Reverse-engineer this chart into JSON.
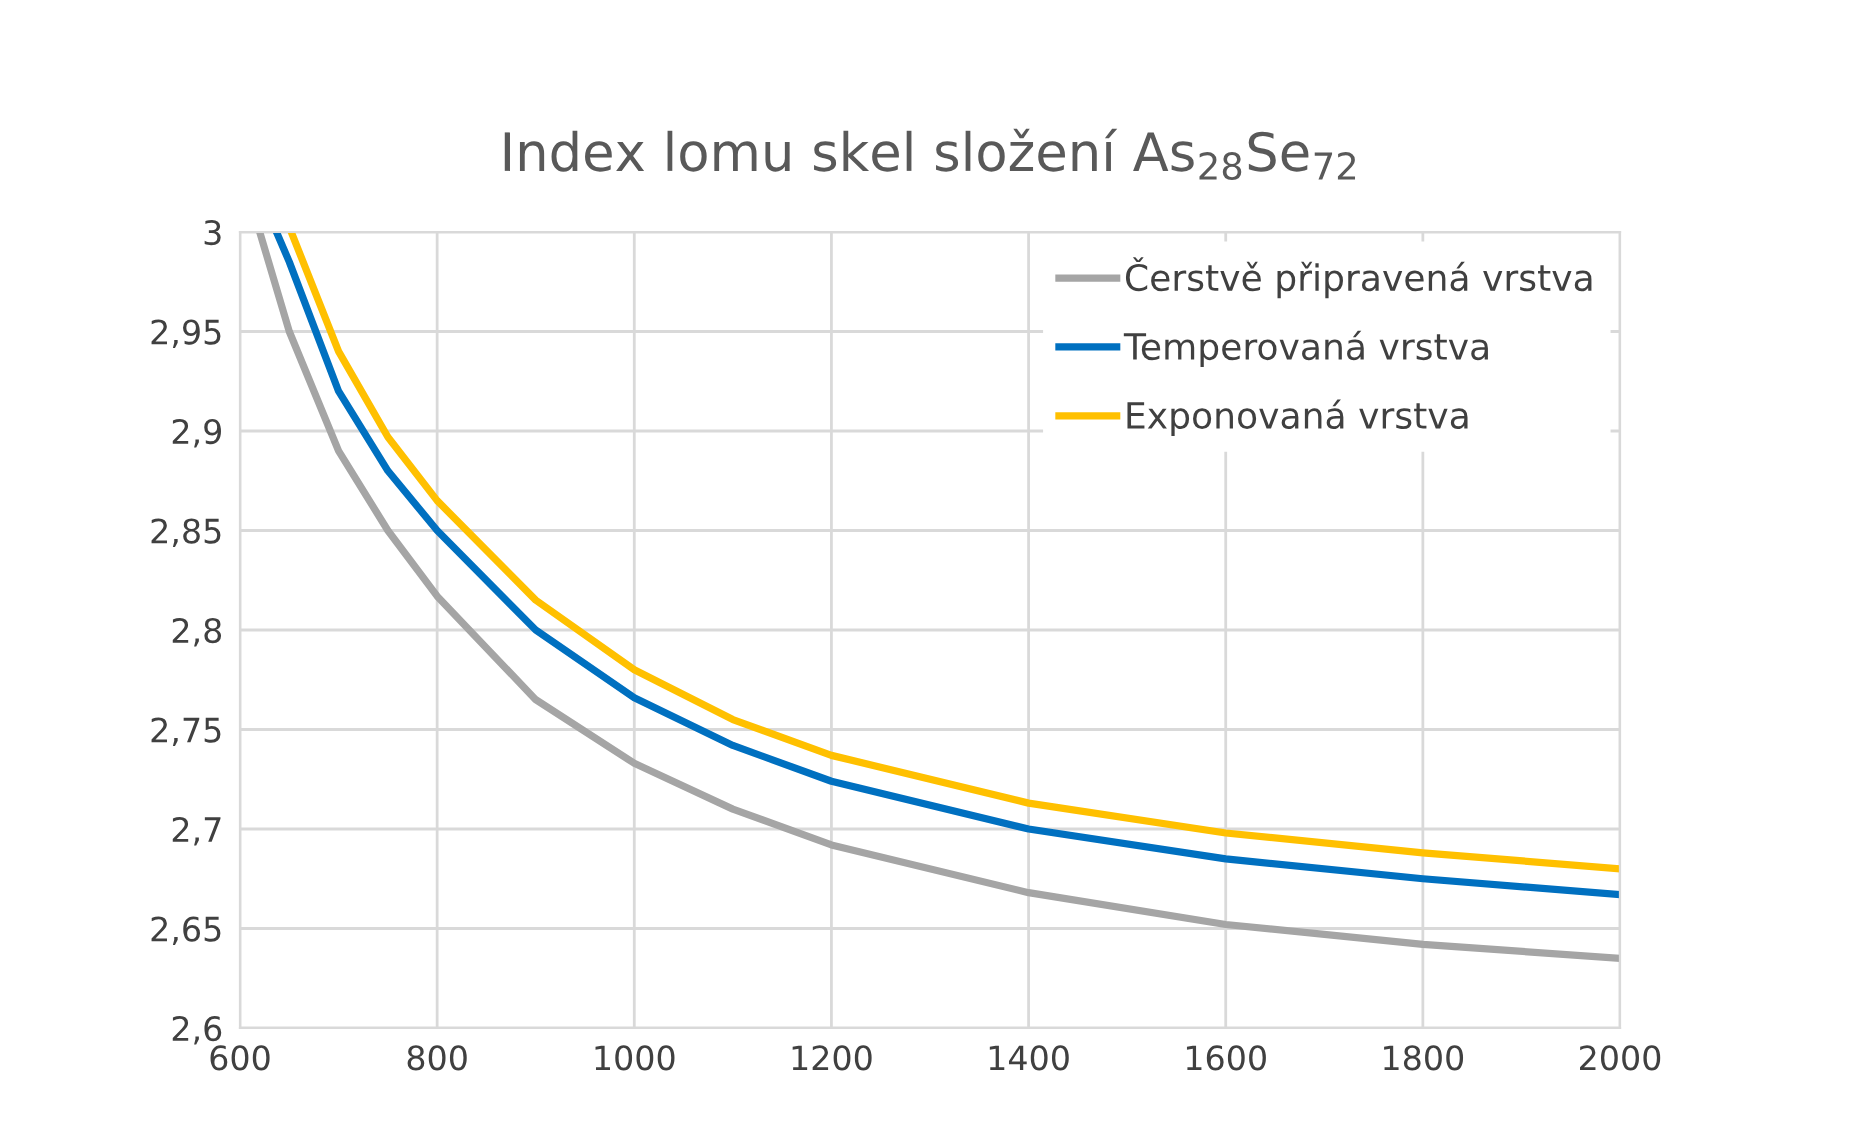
{
  "chart_data": {
    "type": "line",
    "title": "Index lomu skel složení As$_{28}$Se$_{72}$",
    "xlim": [
      600,
      2000
    ],
    "xticks": [
      600,
      800,
      1000,
      1200,
      1400,
      1600,
      1800,
      2000
    ],
    "ylim": [
      2.6,
      3
    ],
    "yticks": [
      {
        "value": 2.6,
        "label": "2,6"
      },
      {
        "value": 2.65,
        "label": "2,65"
      },
      {
        "value": 2.7,
        "label": "2,7"
      },
      {
        "value": 2.75,
        "label": "2,75"
      },
      {
        "value": 2.8,
        "label": "2,8"
      },
      {
        "value": 2.85,
        "label": "2,85"
      },
      {
        "value": 2.9,
        "label": "2,9"
      },
      {
        "value": 2.95,
        "label": "2,95"
      },
      {
        "value": 3,
        "label": "3"
      }
    ],
    "grid": true,
    "legend": "top right",
    "marker": "none",
    "line_style": "solid",
    "series": [
      {
        "name": "Čerstvě připravená vrstva",
        "color": "#a5a5a5",
        "x": [
          620,
          650,
          700,
          750,
          800,
          900,
          1000,
          1100,
          1200,
          1400,
          1600,
          1800,
          2000
        ],
        "values": [
          3.0,
          2.95,
          2.89,
          2.85,
          2.817,
          2.765,
          2.733,
          2.71,
          2.692,
          2.668,
          2.652,
          2.642,
          2.635
        ]
      },
      {
        "name": "Temperovaná vrstva",
        "color": "#0070c0",
        "x": [
          637,
          650,
          700,
          750,
          800,
          900,
          1000,
          1100,
          1200,
          1400,
          1600,
          1800,
          2000
        ],
        "values": [
          3.0,
          2.985,
          2.92,
          2.88,
          2.85,
          2.8,
          2.766,
          2.742,
          2.724,
          2.7,
          2.685,
          2.675,
          2.667
        ]
      },
      {
        "name": "Exponovaná vrstva",
        "color": "#ffc000",
        "x": [
          652,
          700,
          750,
          800,
          900,
          1000,
          1100,
          1200,
          1400,
          1600,
          1800,
          2000
        ],
        "values": [
          3.0,
          2.94,
          2.897,
          2.865,
          2.815,
          2.78,
          2.755,
          2.737,
          2.713,
          2.698,
          2.688,
          2.68
        ]
      }
    ]
  }
}
